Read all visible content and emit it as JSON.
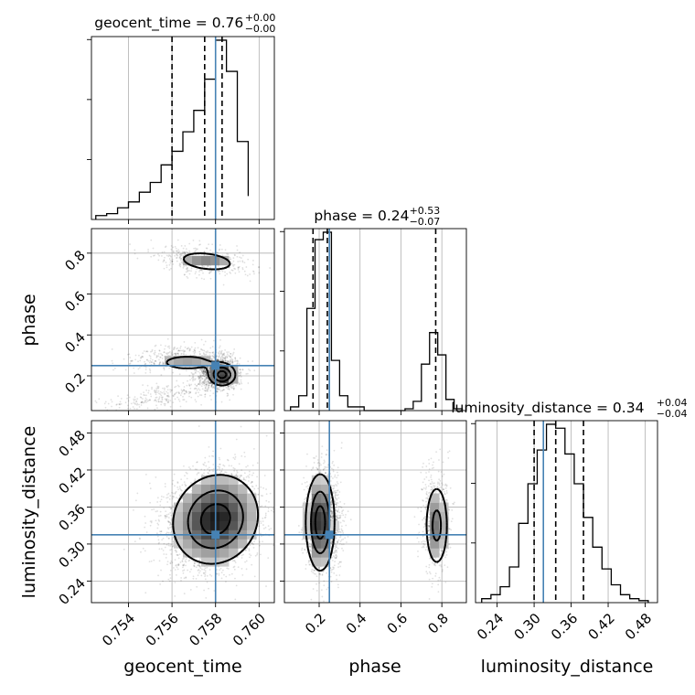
{
  "chart_data": {
    "type": "corner",
    "parameters": [
      "geocent_time",
      "phase",
      "luminosity_distance"
    ],
    "truth": {
      "geocent_time": 0.758,
      "phase": 0.25,
      "luminosity_distance": 0.315
    },
    "axes_labels": {
      "x": [
        "geocent_time",
        "phase",
        "luminosity_distance"
      ],
      "y": [
        "phase",
        "luminosity_distance"
      ]
    },
    "ranges": {
      "geocent_time": [
        0.7523,
        0.7607
      ],
      "phase": [
        0.03,
        0.92
      ],
      "luminosity_distance": [
        0.205,
        0.5
      ]
    },
    "ticks": {
      "geocent_time": [
        {
          "v": 0.754,
          "label": "0.754"
        },
        {
          "v": 0.756,
          "label": "0.756"
        },
        {
          "v": 0.758,
          "label": "0.758"
        },
        {
          "v": 0.76,
          "label": "0.760"
        }
      ],
      "phase": [
        {
          "v": 0.2,
          "label": "0.2"
        },
        {
          "v": 0.4,
          "label": "0.4"
        },
        {
          "v": 0.6,
          "label": "0.6"
        },
        {
          "v": 0.8,
          "label": "0.8"
        }
      ],
      "luminosity_distance": [
        {
          "v": 0.24,
          "label": "0.24"
        },
        {
          "v": 0.3,
          "label": "0.30"
        },
        {
          "v": 0.36,
          "label": "0.36"
        },
        {
          "v": 0.42,
          "label": "0.42"
        },
        {
          "v": 0.48,
          "label": "0.48"
        }
      ]
    },
    "titles": [
      {
        "name": "geocent_time = 0.76",
        "sup": "+0.00",
        "sub": "−0.00"
      },
      {
        "name": "phase = 0.24",
        "sup": "+0.53",
        "sub": "−0.07"
      },
      {
        "name": "luminosity_distance = 0.34",
        "sup": "+0.04",
        "sub": "−0.04"
      }
    ],
    "marginals": [
      {
        "param": "geocent_time",
        "edges": [
          0.7525,
          0.753,
          0.7535,
          0.754,
          0.7545,
          0.755,
          0.7555,
          0.756,
          0.7565,
          0.757,
          0.7575,
          0.758,
          0.7585,
          0.759,
          0.7595
        ],
        "counts": [
          2,
          3,
          6,
          9,
          14,
          19,
          28,
          35,
          45,
          56,
          72,
          92,
          76,
          40,
          12
        ],
        "quantiles": [
          0.756,
          0.7575,
          0.7583
        ]
      },
      {
        "param": "phase",
        "edges": [
          0.06,
          0.1,
          0.14,
          0.18,
          0.22,
          0.26,
          0.3,
          0.34,
          0.38,
          0.42,
          0.46,
          0.5,
          0.54,
          0.58,
          0.62,
          0.66,
          0.7,
          0.74,
          0.78,
          0.82,
          0.86,
          0.9
        ],
        "counts": [
          2,
          8,
          55,
          92,
          96,
          27,
          8,
          2,
          2,
          0,
          0,
          0,
          0,
          0,
          1,
          5,
          25,
          42,
          30,
          6,
          1
        ],
        "quantiles": [
          0.17,
          0.24,
          0.77
        ]
      },
      {
        "param": "luminosity_distance",
        "edges": [
          0.215,
          0.23,
          0.245,
          0.26,
          0.275,
          0.29,
          0.305,
          0.32,
          0.335,
          0.35,
          0.365,
          0.38,
          0.395,
          0.41,
          0.425,
          0.44,
          0.455,
          0.47,
          0.485
        ],
        "counts": [
          2,
          4,
          8,
          18,
          40,
          60,
          77,
          90,
          88,
          75,
          60,
          43,
          28,
          17,
          9,
          4,
          2,
          1
        ],
        "quantiles": [
          0.3,
          0.335,
          0.38
        ]
      }
    ]
  }
}
